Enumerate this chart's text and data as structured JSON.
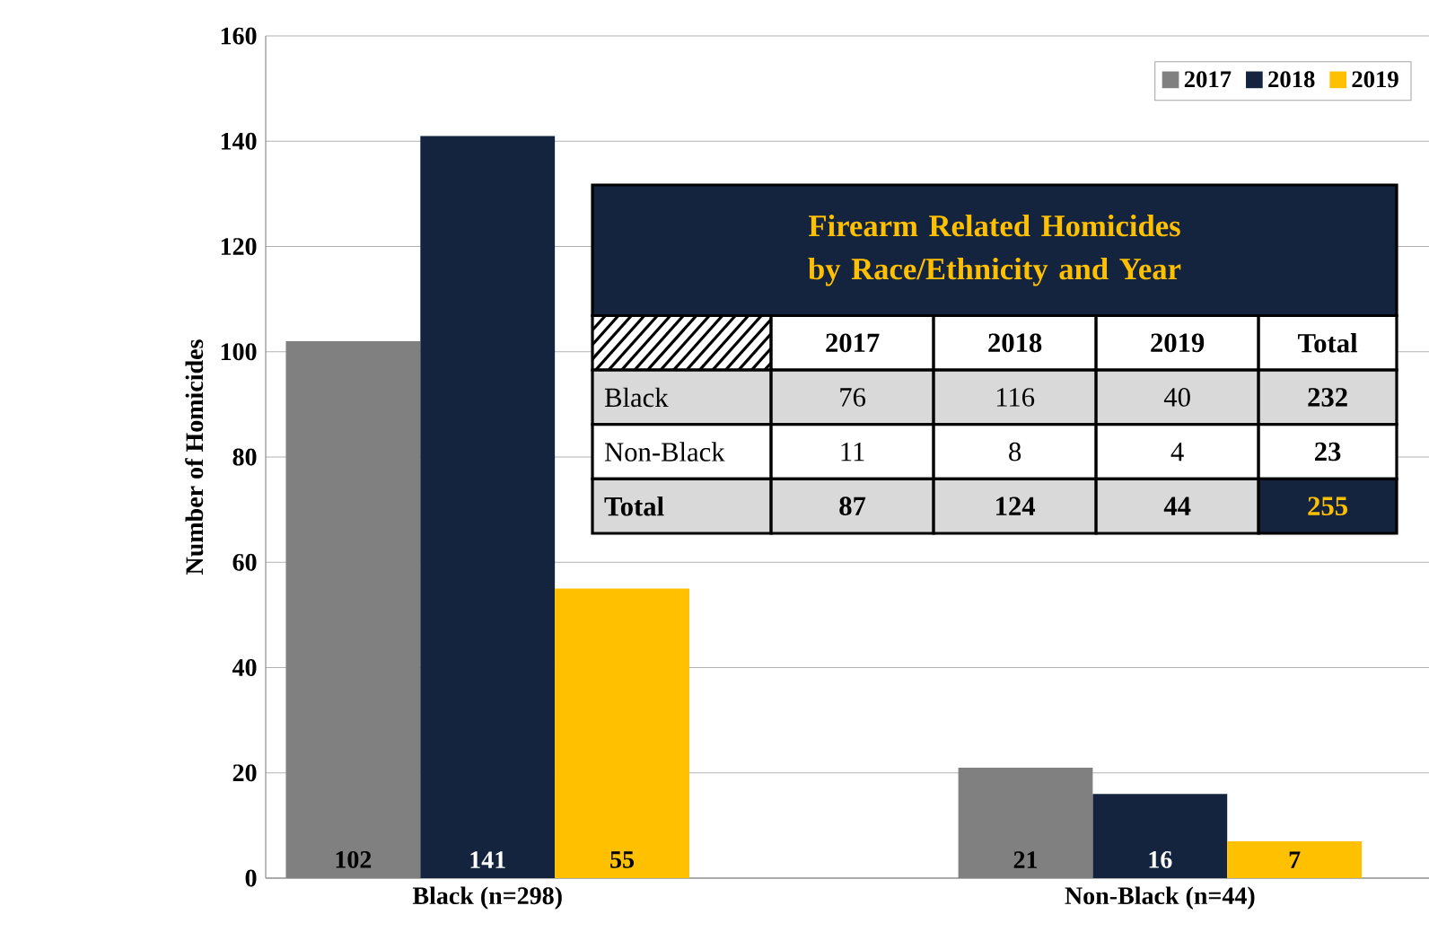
{
  "chart_data": [
    {
      "type": "bar",
      "ylabel": "Number of Homicides",
      "categories": [
        "Black (n=298)",
        "Non-Black (n=44)"
      ],
      "series": [
        {
          "name": "2017",
          "color": "#808080",
          "values": [
            102,
            21
          ]
        },
        {
          "name": "2018",
          "color": "#14243f",
          "values": [
            141,
            16
          ]
        },
        {
          "name": "2019",
          "color": "#ffc000",
          "values": [
            55,
            7
          ]
        }
      ],
      "ylim": [
        0,
        160
      ],
      "yticks": [
        0,
        20,
        40,
        60,
        80,
        100,
        120,
        140,
        160
      ],
      "grid": "y",
      "legend": "top right",
      "data_labels": true
    },
    {
      "type": "other",
      "title": "Firearm Related Homicides by Race/Ethnicity and Year",
      "categories": [
        "2017",
        "2018",
        "2019",
        "Total"
      ],
      "series": [
        {
          "name": "Black",
          "colors": [
            "#d9d9d9",
            "#d9d9d9",
            "#d9d9d9",
            "#d9d9d9"
          ],
          "values": [
            76,
            116,
            40,
            232
          ]
        },
        {
          "name": "Non-Black",
          "colors": [
            "#ffffff",
            "#ffffff",
            "#ffffff",
            "#ffffff"
          ],
          "values": [
            11,
            8,
            4,
            23
          ]
        },
        {
          "name": "Total",
          "colors": [
            "#d9d9d9",
            "#d9d9d9",
            "#d9d9d9",
            "#14243f"
          ],
          "values": [
            87,
            124,
            44,
            255
          ]
        }
      ],
      "data_labels": true
    }
  ]
}
